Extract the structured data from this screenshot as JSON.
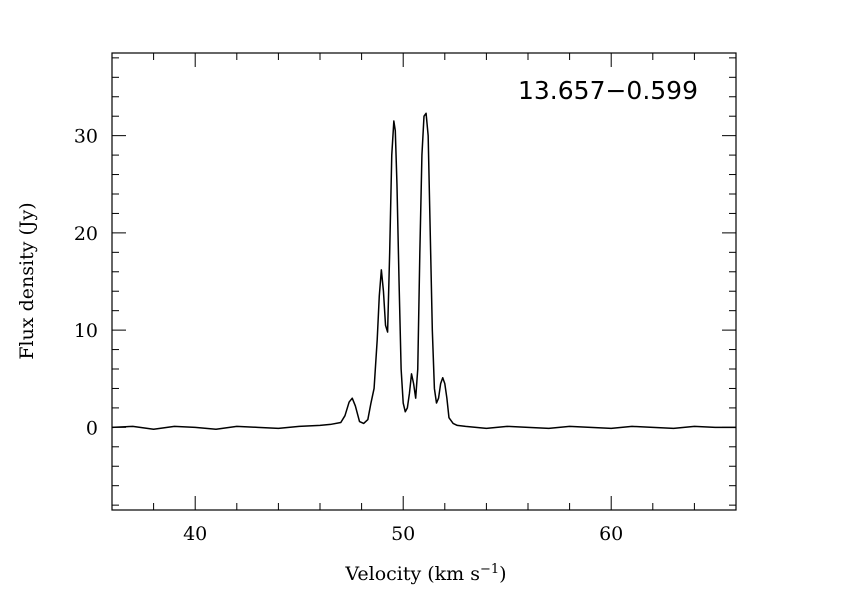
{
  "chart_data": {
    "type": "line",
    "title": "",
    "annotation": "13.657−0.599",
    "xlabel": "Velocity (km s",
    "xlabel_sup": "−1",
    "xlabel_close": ")",
    "ylabel": "Flux density (Jy)",
    "xlim": [
      36,
      66
    ],
    "ylim": [
      -8.5,
      38.5
    ],
    "x_ticks": [
      40,
      50,
      60
    ],
    "x_tick_labels": [
      "40",
      "50",
      "60"
    ],
    "y_ticks": [
      0,
      10,
      20,
      30
    ],
    "y_tick_labels": [
      "0",
      "10",
      "20",
      "30"
    ],
    "x_minor_step": 2,
    "y_minor_step": 2,
    "grid": false,
    "legend": "none",
    "line_color": "#000000",
    "series": [
      {
        "x": [
          36,
          37,
          38,
          39,
          40,
          41,
          42,
          43,
          44,
          45,
          46,
          46.5,
          47,
          47.2,
          47.4,
          47.55,
          47.7,
          47.9,
          48.1,
          48.3,
          48.45,
          48.6,
          48.75,
          48.85,
          48.95,
          49.05,
          49.15,
          49.25,
          49.35,
          49.45,
          49.55,
          49.62,
          49.7,
          49.8,
          49.9,
          50.0,
          50.1,
          50.2,
          50.3,
          50.4,
          50.5,
          50.6,
          50.7,
          50.8,
          50.9,
          51.0,
          51.1,
          51.2,
          51.3,
          51.4,
          51.5,
          51.6,
          51.7,
          51.8,
          51.9,
          52.0,
          52.1,
          52.2,
          52.4,
          52.6,
          53,
          54,
          55,
          56,
          57,
          58,
          59,
          60,
          61,
          62,
          63,
          64,
          65,
          66
        ],
        "y": [
          0,
          0.1,
          -0.2,
          0.1,
          0,
          -0.2,
          0.1,
          0,
          -0.1,
          0.1,
          0.2,
          0.3,
          0.5,
          1.2,
          2.6,
          3.0,
          2.2,
          0.6,
          0.4,
          0.8,
          2.5,
          4.0,
          9.0,
          13.5,
          16.2,
          14.0,
          10.5,
          9.8,
          18.0,
          28.0,
          31.5,
          30.5,
          25.0,
          15.0,
          6.0,
          2.5,
          1.6,
          2.0,
          3.5,
          5.5,
          4.5,
          3.0,
          6.0,
          18.0,
          28.0,
          32.0,
          32.3,
          30.0,
          20.0,
          10.0,
          4.0,
          2.5,
          3.0,
          4.5,
          5.1,
          4.5,
          3.0,
          1.0,
          0.4,
          0.2,
          0.1,
          -0.1,
          0.1,
          0,
          -0.1,
          0.1,
          0,
          -0.1,
          0.1,
          0,
          -0.1,
          0.1,
          0,
          0
        ]
      }
    ]
  }
}
